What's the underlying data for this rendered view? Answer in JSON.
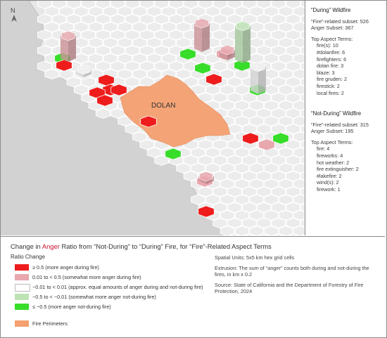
{
  "map": {
    "north_label": "N",
    "place_label": "DOLAN",
    "colors": {
      "water": "#cfcfcf",
      "land": "#e7e7e7",
      "grid_stroke": "#ffffff",
      "fire_perimeter": "#f4a070",
      "cat_high": "#ee1c1c",
      "cat_mid_high": "#e8a8ae",
      "cat_neutral": "#f0f0f0",
      "cat_mid_low": "#bde3b4",
      "cat_low": "#38dd2a"
    }
  },
  "sidebar": {
    "during": {
      "title": "“During” Wildfire",
      "subset_line": "“Fire”-related subset: 526",
      "anger_line": "Anger Subset: 367",
      "terms_title": "Top Aspect Terms:",
      "terms": [
        "fire(s): 10",
        "#dolanfire: 6",
        "firefighters: 6",
        "dolan fire: 3",
        "blaze: 3",
        "fire gruden: 2",
        "firestick: 2",
        "local fires: 2"
      ]
    },
    "not_during": {
      "title": "“Not-During” Wildfire",
      "subset_line": "“Fire”-related subset: 315",
      "anger_line": "Anger Subset: 195",
      "terms_title": "Top Aspect Terms:",
      "terms": [
        "fire: 4",
        "fireworks: 4",
        "hot weather: 2",
        "fire extinguisher: 2",
        "#lakefire: 2",
        "wind(s): 2",
        "firework: 1"
      ]
    }
  },
  "legend": {
    "title_pre": "Change in ",
    "title_anger": "Anger",
    "title_post": " Ratio from “Not-During” to “During” Fire, for “Fire”-Related Aspect Terms",
    "ratio_title": "Ratio Change",
    "items": [
      {
        "label": "≥ 0.5 (more anger during fire)",
        "color": "#ee1c1c"
      },
      {
        "label": "0.01 to < 0.5 (somewhat more anger during fire)",
        "color": "#e8a8ae"
      },
      {
        "label": "−0.01 to < 0.01 (approx. equal amounts of anger during and not-during fire)",
        "color": "#ffffff"
      },
      {
        "label": "−0.5 to < −0.01 (somewhat more anger not-during fire)",
        "color": "#bde3b4"
      },
      {
        "label": "≤ −0.5 (more anger not-during fire)",
        "color": "#38dd2a"
      }
    ],
    "fire_perimeters": {
      "label": "Fire Perimeters",
      "color": "#f4a070"
    },
    "spatial_units": "Spatial Units: 5x5 km hex grid cells",
    "extrusion": "Extrusion: The sum of “anger” counts both during and not-during the fires, in km x 0.2",
    "source": "Source: State of California and the Department of Forestry of Fire Protection, 2024"
  }
}
